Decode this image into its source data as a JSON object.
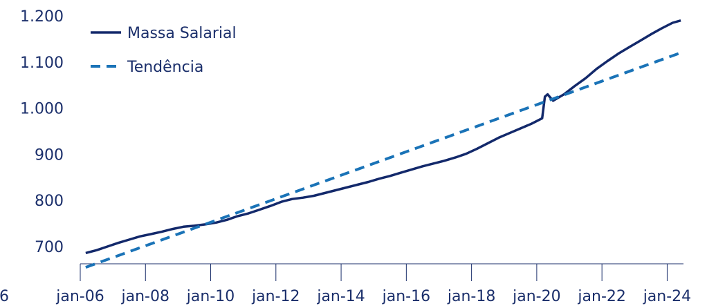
{
  "chart_data": {
    "type": "line",
    "title": "",
    "xlabel": "",
    "ylabel": "",
    "x_range": [
      "2006-01",
      "2024-07"
    ],
    "ylim": [
      650,
      1200
    ],
    "y_ticks": [
      {
        "value": 700,
        "label": "700"
      },
      {
        "value": 800,
        "label": "800"
      },
      {
        "value": 900,
        "label": "900"
      },
      {
        "value": 1000,
        "label": "1.000"
      },
      {
        "value": 1100,
        "label": "1.100"
      },
      {
        "value": 1200,
        "label": "1.200"
      }
    ],
    "x_ticks": [
      {
        "value": "2006-01",
        "label": "jan-06"
      },
      {
        "value": "2008-01",
        "label": "jan-08"
      },
      {
        "value": "2010-01",
        "label": "jan-10"
      },
      {
        "value": "2012-01",
        "label": "jan-12"
      },
      {
        "value": "2014-01",
        "label": "jan-14"
      },
      {
        "value": "2016-01",
        "label": "jan-16"
      },
      {
        "value": "2018-01",
        "label": "jan-18"
      },
      {
        "value": "2020-01",
        "label": "jan-20"
      },
      {
        "value": "2022-01",
        "label": "jan-22"
      },
      {
        "value": "2024-01",
        "label": "jan-24"
      }
    ],
    "edge_label": "6",
    "legend_position": "top-left",
    "grid": false,
    "series": [
      {
        "name": "Massa Salarial",
        "style": "solid",
        "color": "#13296b",
        "points": [
          [
            "2006-03",
            686
          ],
          [
            "2006-07",
            692
          ],
          [
            "2006-11",
            700
          ],
          [
            "2007-03",
            708
          ],
          [
            "2007-07",
            715
          ],
          [
            "2007-11",
            722
          ],
          [
            "2008-03",
            727
          ],
          [
            "2008-07",
            732
          ],
          [
            "2008-11",
            738
          ],
          [
            "2009-03",
            743
          ],
          [
            "2009-07",
            745
          ],
          [
            "2009-11",
            748
          ],
          [
            "2010-03",
            752
          ],
          [
            "2010-07",
            758
          ],
          [
            "2010-11",
            766
          ],
          [
            "2011-03",
            772
          ],
          [
            "2011-07",
            780
          ],
          [
            "2011-11",
            788
          ],
          [
            "2012-03",
            797
          ],
          [
            "2012-07",
            803
          ],
          [
            "2012-11",
            806
          ],
          [
            "2013-03",
            810
          ],
          [
            "2013-07",
            816
          ],
          [
            "2013-11",
            822
          ],
          [
            "2014-03",
            828
          ],
          [
            "2014-07",
            834
          ],
          [
            "2014-11",
            840
          ],
          [
            "2015-03",
            847
          ],
          [
            "2015-07",
            853
          ],
          [
            "2015-11",
            860
          ],
          [
            "2016-03",
            867
          ],
          [
            "2016-07",
            874
          ],
          [
            "2016-11",
            880
          ],
          [
            "2017-03",
            886
          ],
          [
            "2017-07",
            893
          ],
          [
            "2017-11",
            901
          ],
          [
            "2018-03",
            912
          ],
          [
            "2018-07",
            924
          ],
          [
            "2018-11",
            936
          ],
          [
            "2019-03",
            946
          ],
          [
            "2019-07",
            956
          ],
          [
            "2019-11",
            966
          ],
          [
            "2020-01",
            972
          ],
          [
            "2020-03",
            978
          ],
          [
            "2020-04",
            1025
          ],
          [
            "2020-05",
            1030
          ],
          [
            "2020-07",
            1016
          ],
          [
            "2020-11",
            1030
          ],
          [
            "2021-03",
            1048
          ],
          [
            "2021-07",
            1065
          ],
          [
            "2021-11",
            1085
          ],
          [
            "2022-03",
            1102
          ],
          [
            "2022-07",
            1118
          ],
          [
            "2022-11",
            1132
          ],
          [
            "2023-03",
            1146
          ],
          [
            "2023-07",
            1160
          ],
          [
            "2023-11",
            1173
          ],
          [
            "2024-03",
            1185
          ],
          [
            "2024-06",
            1190
          ]
        ]
      },
      {
        "name": "Tendência",
        "style": "dashed",
        "color": "#1a73b7",
        "points": [
          [
            "2006-03",
            655
          ],
          [
            "2024-06",
            1120
          ]
        ]
      }
    ]
  }
}
